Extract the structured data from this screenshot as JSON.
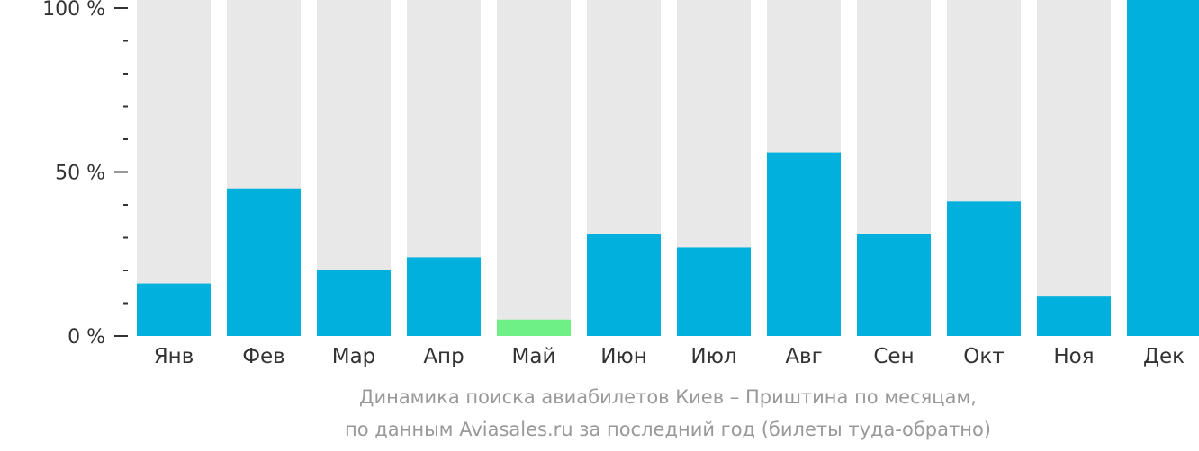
{
  "chart_data": {
    "type": "bar",
    "categories": [
      "Янв",
      "Фев",
      "Мар",
      "Апр",
      "Май",
      "Июн",
      "Июл",
      "Авг",
      "Сен",
      "Окт",
      "Ноя",
      "Дек"
    ],
    "values": [
      16,
      45,
      20,
      24,
      5,
      31,
      27,
      56,
      31,
      41,
      12,
      100
    ],
    "highlight_min_color": "#6ef087",
    "bar_color": "#01b0dd",
    "track_color": "#e8e8e8",
    "ylim": [
      0,
      100
    ],
    "yticks": [
      {
        "value": 0,
        "label": "0 %"
      },
      {
        "value": 50,
        "label": "50 %"
      },
      {
        "value": 100,
        "label": "100 %"
      }
    ],
    "minor_tick_step": 10,
    "title_lines": [
      "Динамика поиска авиабилетов Киев – Приштина по месяцам,",
      "по данным Aviasales.ru за последний год (билеты туда-обратно)"
    ]
  }
}
